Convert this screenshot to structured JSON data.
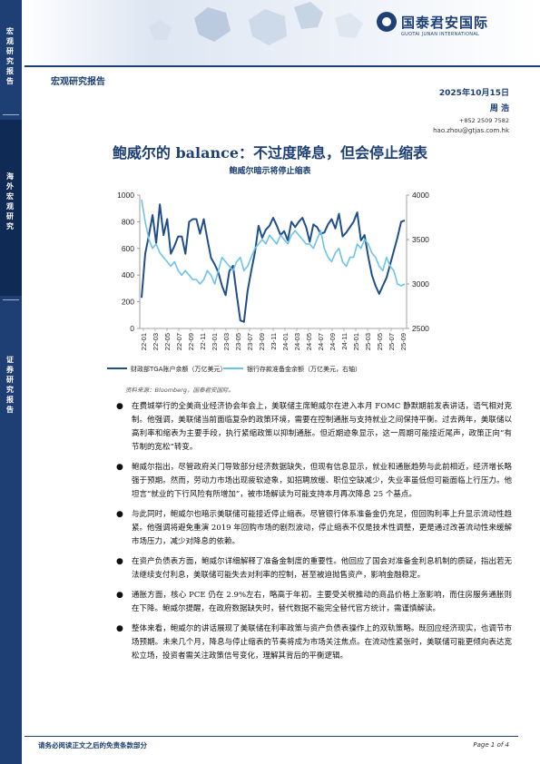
{
  "sidebar": {
    "sections": [
      "宏观研究报告",
      "海外宏观研究",
      "证券研究报告"
    ]
  },
  "header": {
    "logo_cn": "国泰君安国际",
    "logo_en": "GUOTAI JUNAN INTERNATIONAL",
    "report_type": "宏观研究报告",
    "date": "2025年10月15日",
    "author": "周 浩",
    "phone": "+852 2509 7582",
    "email": "hao.zhou@gtjas.com.hk"
  },
  "title": "鲍威尔的 balance：不过度降息，但会停止缩表",
  "chart_data": {
    "type": "line",
    "title": "鲍威尔暗示将停止缩表",
    "x_tick_labels": [
      "22-01",
      "22-03",
      "22-05",
      "22-07",
      "22-09",
      "22-11",
      "23-01",
      "23-03",
      "23-05",
      "23-07",
      "23-09",
      "23-11",
      "24-01",
      "24-03",
      "24-05",
      "24-07",
      "24-09",
      "24-11",
      "25-01",
      "25-03",
      "25-05",
      "25-07",
      "25-09"
    ],
    "y_left": {
      "range": [
        0,
        1000
      ],
      "ticks": [
        0,
        200,
        400,
        600,
        800,
        1000
      ]
    },
    "y_right": {
      "range": [
        2500,
        4000
      ],
      "ticks": [
        2500,
        3000,
        3500,
        4000
      ]
    },
    "legend_position": "bottom",
    "series": [
      {
        "name": "财政部TGA账户余额（万亿美元）",
        "axis": "left",
        "color": "#1f4e8c",
        "values": [
          230,
          560,
          700,
          850,
          640,
          930,
          700,
          820,
          560,
          620,
          690,
          690,
          560,
          800,
          820,
          820,
          710,
          820,
          670,
          530,
          480,
          420,
          320,
          250,
          430,
          470,
          260,
          60,
          50,
          280,
          430,
          570,
          770,
          680,
          740,
          770,
          830,
          770,
          700,
          730,
          660,
          800,
          760,
          800,
          830,
          760,
          650,
          780,
          760,
          710,
          720,
          780,
          820,
          750,
          860,
          690,
          720,
          760,
          800,
          870,
          660,
          700,
          540,
          400,
          320,
          260,
          320,
          380,
          480,
          580,
          680,
          800,
          810
        ]
      },
      {
        "name": "银行存款准备金余额（万亿美元，右轴）",
        "axis": "right",
        "color": "#6cc3ea",
        "values": [
          3950,
          3700,
          3500,
          3400,
          3450,
          3350,
          3300,
          3250,
          3200,
          3250,
          3150,
          3100,
          3150,
          3100,
          3050,
          3050,
          3000,
          3050,
          3150,
          3100,
          3000,
          3150,
          3300,
          3250,
          3200,
          3150,
          3250,
          3300,
          3150,
          3200,
          3300,
          3400,
          3450,
          3500,
          3450,
          3550,
          3500,
          3450,
          3550,
          3500,
          3450,
          3550,
          3600,
          3550,
          3500,
          3450,
          3450,
          3400,
          3500,
          3600,
          3400,
          3300,
          3250,
          3350,
          3400,
          3250,
          3200,
          3300,
          3300,
          3450,
          3400,
          3500,
          3450,
          3350,
          3300,
          3200,
          3150,
          3300,
          3200,
          3150,
          3000,
          2980,
          3000
        ]
      }
    ]
  },
  "source": "资料来源：Bloomberg，国泰君安国际。",
  "paragraphs": [
    "在费城举行的全美商业经济协会年会上，美联储主席鲍威尔在进入本月 FOMC 静默期前发表讲话，语气相对克制。他强调，美联储当前面临复杂的政策环境，需要在控制通胀与支持就业之间保持平衡。过去两年，美联储以高利率和缩表为主要手段，执行紧缩政策以抑制通胀。但近期迹象显示，这一周期可能接近尾声，政策正向“有节制的宽松”转变。",
    "鲍威尔指出，尽管政府关门导致部分经济数据缺失，但现有信息显示，就业和通胀趋势与此前相近，经济增长略强于预期。然而，劳动力市场出现疲软迹象，如招聘放缓、职位空缺减少，失业率虽低但可能面临上行压力。他坦言“就业的下行风险有所增加”，被市场解读为可能支持本月再次降息 25 个基点。",
    "与此同时，鲍威尔也暗示美联储可能接近停止缩表。尽管银行体系准备金仍充足，但回购利率上升显示流动性趋紧。他强调将避免重演 2019 年回购市场的剧烈波动，停止缩表不仅是技术性调整，更是通过改善流动性来缓解市场压力，减少对降息的依赖。",
    "在资产负债表方面，鲍威尔详细解释了准备金制度的重要性。他回应了国会对准备金利息机制的质疑，指出若无法继续支付利息，美联储可能失去对利率的控制，甚至被迫抛售资产，影响金融稳定。",
    "通胀方面，核心 PCE 仍在 2.9%左右，略高于年初。主要受关税推动的商品价格上涨影响，而住房服务通胀则在下降。鲍威尔提醒，在政府数据缺失时，替代数据不能完全替代官方统计，需谨慎解读。",
    "整体来看，鲍威尔的讲话展现了美联储在利率政策与资产负债表操作上的双轨策略。既回应经济现实，也调节市场预期。未来几个月，降息与停止缩表的节奏将成为市场关注焦点。在流动性紧张时，美联储可能更倾向表达宽松立场，投资者需关注政策信号变化，理解其背后的平衡逻辑。"
  ],
  "footer": {
    "disclaimer": "请务必阅读正文之后的免责条款部分",
    "page": "Page 1 of 4"
  }
}
